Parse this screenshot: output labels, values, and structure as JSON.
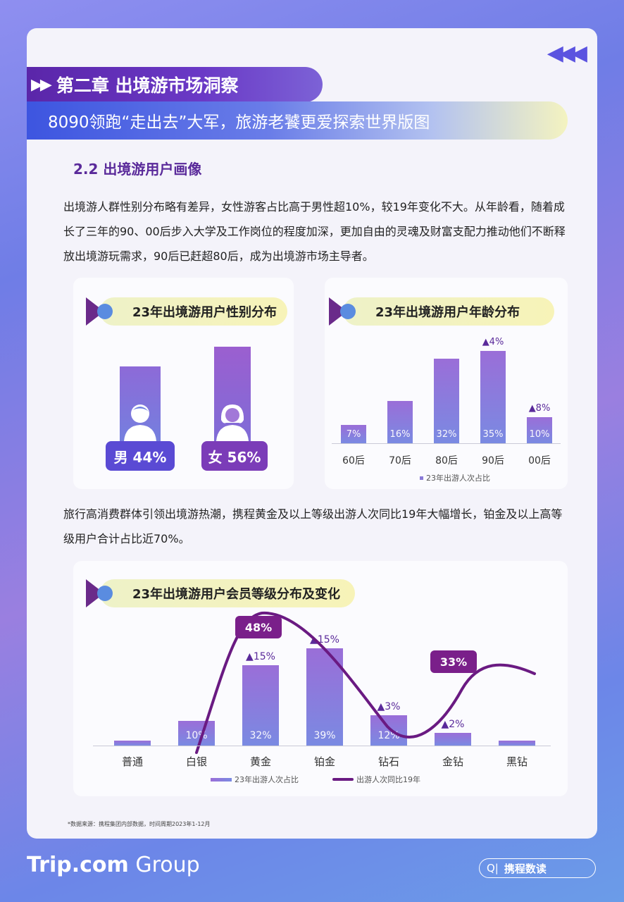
{
  "header": {
    "chapter": "第二章 出境游市场洞察",
    "subtitle": "8090领跑“走出去”大军，旅游老饕更爱探索世界版图"
  },
  "section": {
    "title": "2.2  出境游用户画像"
  },
  "paragraphs": [
    "出境游人群性别分布略有差异，女性游客占比高于男性超10%，较19年变化不大。从年龄看，随着成长了三年的90、00后步入大学及工作岗位的程度加深，更加自由的灵魂及财富支配力推动他们不断释放出境游玩需求，90后已赶超80后，成为出境游市场主导者。",
    "旅行高消费群体引领出境游热潮，携程黄金及以上等级出游人次同比19年大幅增长，铂金及以上高等级用户合计占比近70%。"
  ],
  "footnote": "*数据来源：携程集团内部数据，时间周期2023年1-12月",
  "brand": {
    "name": "Trip.com",
    "suffix": " Group"
  },
  "search_label": "携程数读",
  "chart_data": [
    {
      "type": "bar",
      "title": "23年出境游用户性别分布",
      "categories": [
        "男",
        "女"
      ],
      "values": [
        44,
        56
      ],
      "labels": [
        "男 44%",
        "女 56%"
      ]
    },
    {
      "type": "bar",
      "title": "23年出境游用户年龄分布",
      "categories": [
        "60后",
        "70后",
        "80后",
        "90后",
        "00后"
      ],
      "values": [
        7,
        16,
        32,
        35,
        10
      ],
      "value_labels": [
        "7%",
        "16%",
        "32%",
        "35%",
        "10%"
      ],
      "change_labels": [
        "",
        "",
        "",
        "▲4%",
        "▲8%"
      ],
      "legend": "23年出游人次占比"
    },
    {
      "type": "bar",
      "title": "23年出境游用户会员等级分布及变化",
      "categories": [
        "普通",
        "白银",
        "黄金",
        "铂金",
        "钻石",
        "金钻",
        "黑钻"
      ],
      "series": [
        {
          "name": "23年出游人次占比",
          "values": [
            2,
            10,
            32,
            39,
            12,
            5,
            2
          ],
          "value_labels": [
            "",
            "10%",
            "32%",
            "39%",
            "12%",
            "",
            ""
          ],
          "change_labels": [
            "",
            "",
            "▲15%",
            "▲15%",
            "▲3%",
            "▲2%",
            ""
          ]
        },
        {
          "name": "出游人次同比19年",
          "type": "line",
          "callouts": [
            {
              "category": "黄金",
              "label": "48%"
            },
            {
              "category": "金钻",
              "label": "33%"
            }
          ]
        }
      ]
    }
  ]
}
